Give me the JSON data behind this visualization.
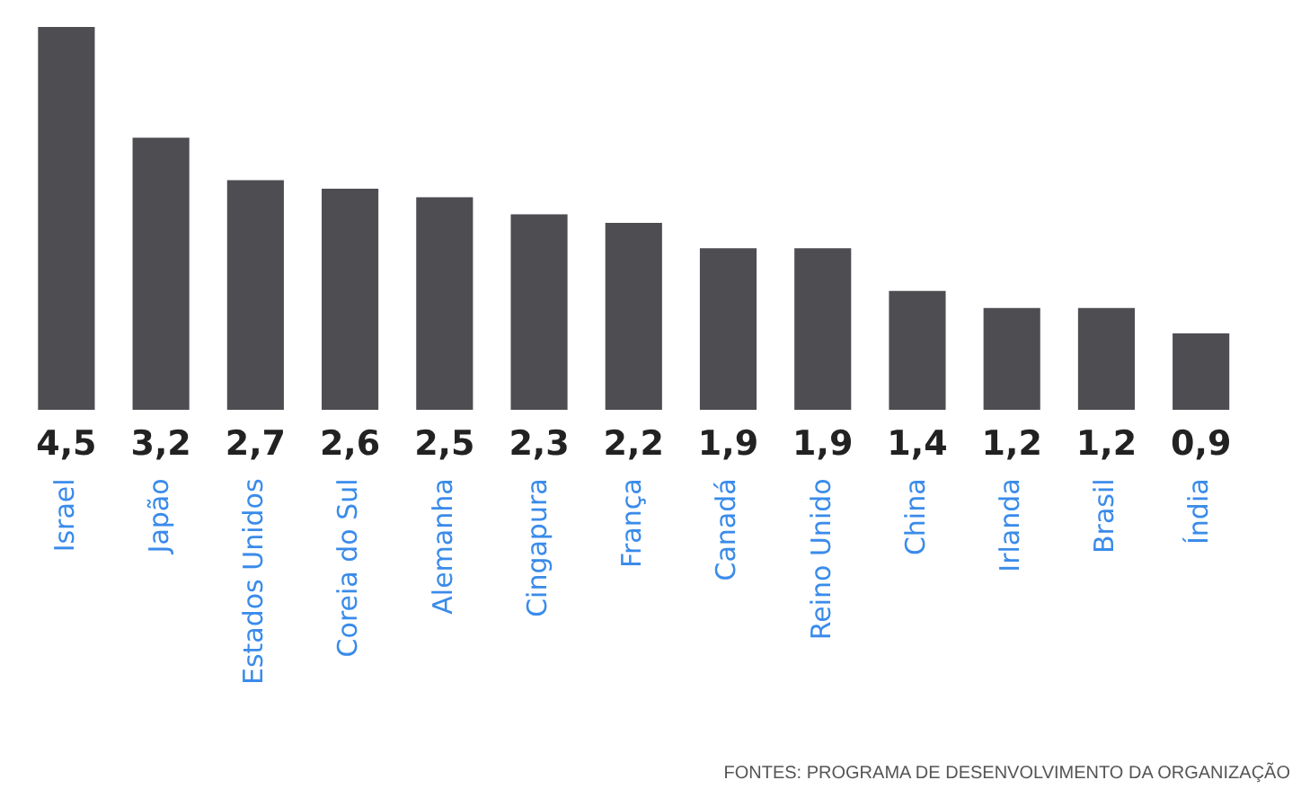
{
  "chart_data": {
    "type": "bar",
    "categories": [
      "Israel",
      "Japão",
      "Estados Unidos",
      "Coreia do Sul",
      "Alemanha",
      "Cingapura",
      "França",
      "Canadá",
      "Reino Unido",
      "China",
      "Irlanda",
      "Brasil",
      "Índia"
    ],
    "values": [
      4.5,
      3.2,
      2.7,
      2.6,
      2.5,
      2.3,
      2.2,
      1.9,
      1.9,
      1.4,
      1.2,
      1.2,
      0.9
    ],
    "value_labels": [
      "4,5",
      "3,2",
      "2,7",
      "2,6",
      "2,5",
      "2,3",
      "2,2",
      "1,9",
      "1,9",
      "1,4",
      "1,2",
      "1,2",
      "0,9"
    ],
    "color": "#4d4d52",
    "annotations": [
      "FONTES: PROGRAMA DE DESENVOLVIMENTO DA ORGANIZAÇÃO"
    ],
    "grid": false,
    "legend": false,
    "tick_labels": "x"
  }
}
